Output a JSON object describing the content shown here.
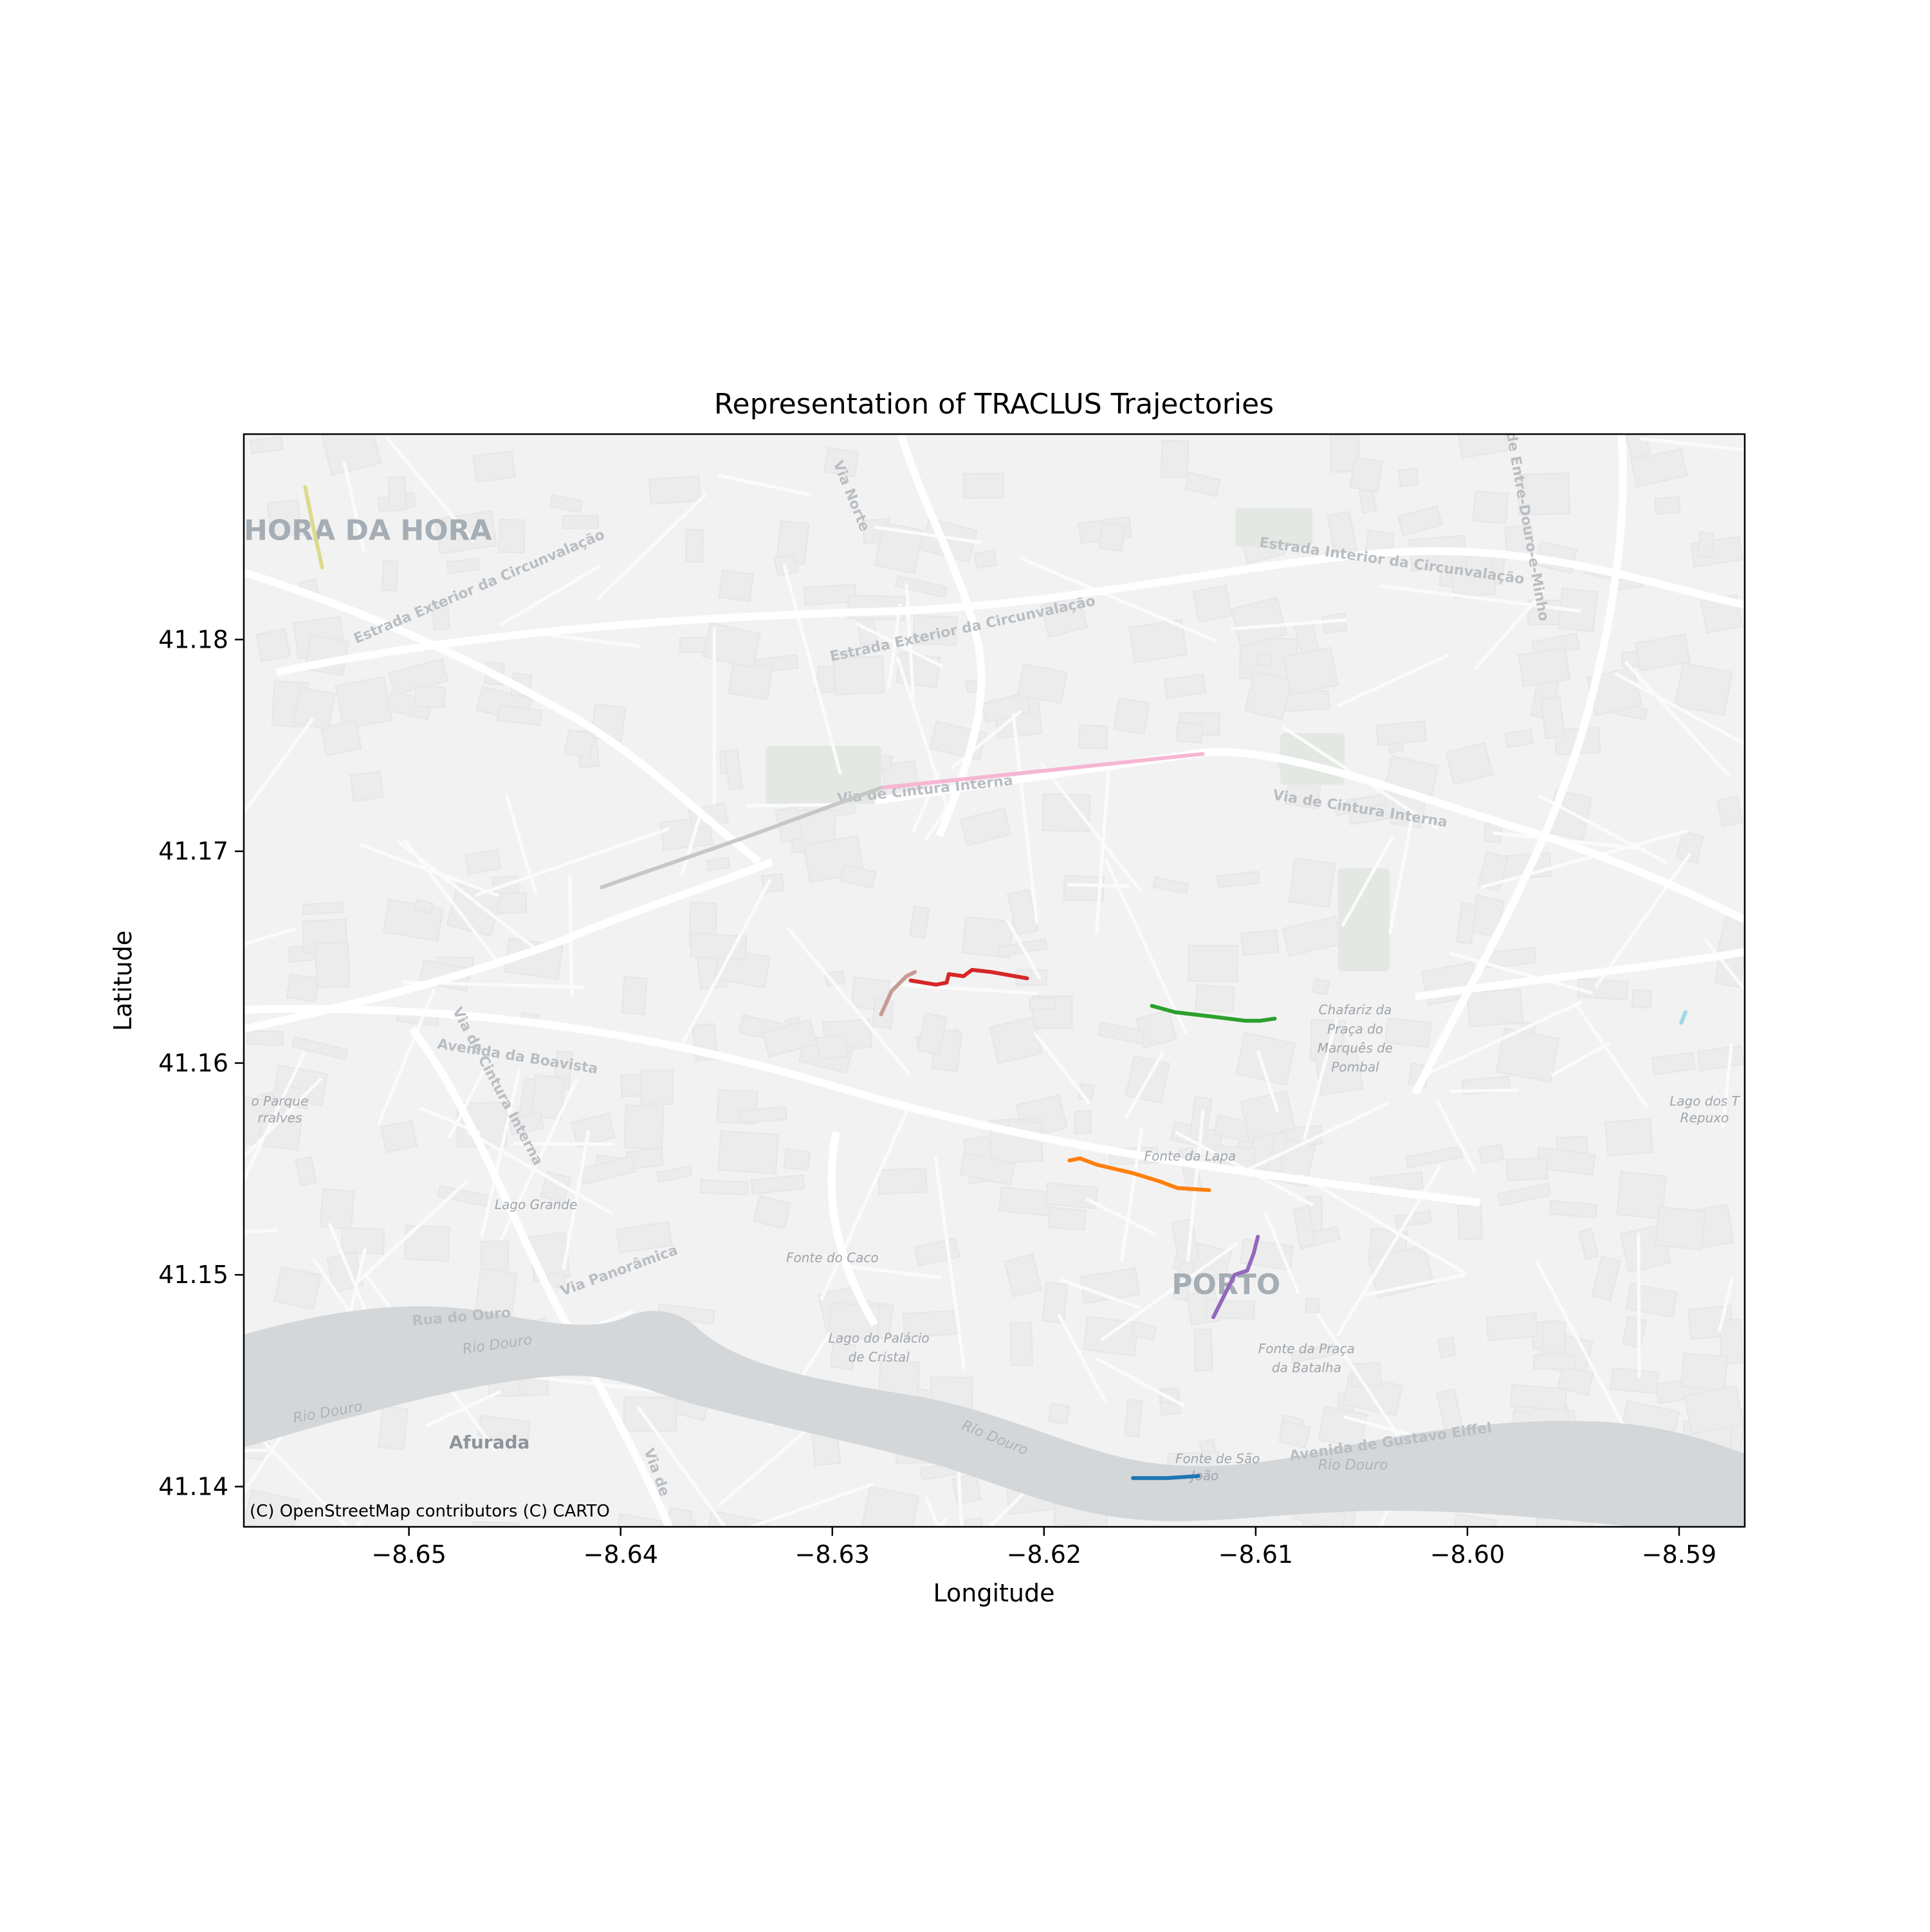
{
  "chart_data": {
    "type": "line",
    "title": "Representation of TRACLUS Trajectories",
    "xlabel": "Longitude",
    "ylabel": "Latitude",
    "xlim": [
      -8.6578,
      -8.5869
    ],
    "ylim": [
      41.1381,
      41.1897
    ],
    "xticks": [
      -8.65,
      -8.64,
      -8.63,
      -8.62,
      -8.61,
      -8.6,
      -8.59
    ],
    "xtick_labels": [
      "−8.65",
      "−8.64",
      "−8.63",
      "−8.62",
      "−8.61",
      "−8.60",
      "−8.59"
    ],
    "yticks": [
      41.14,
      41.15,
      41.16,
      41.17,
      41.18
    ],
    "ytick_labels": [
      "41.14",
      "41.15",
      "41.16",
      "41.17",
      "41.18"
    ],
    "grid": false,
    "legend": false,
    "attribution": "(C) OpenStreetMap contributors (C) CARTO",
    "series": [
      {
        "color": "#1f77b4",
        "points": [
          [
            -8.6158,
            41.1404
          ],
          [
            -8.6142,
            41.1404
          ],
          [
            -8.6127,
            41.1405
          ]
        ]
      },
      {
        "color": "#ff7f0e",
        "points": [
          [
            -8.6188,
            41.1554
          ],
          [
            -8.6183,
            41.1555
          ],
          [
            -8.6175,
            41.1552
          ],
          [
            -8.6158,
            41.1548
          ],
          [
            -8.6145,
            41.1544
          ],
          [
            -8.6137,
            41.1541
          ],
          [
            -8.6122,
            41.154
          ]
        ]
      },
      {
        "color": "#2ca02c",
        "points": [
          [
            -8.6149,
            41.1627
          ],
          [
            -8.6138,
            41.1624
          ],
          [
            -8.6121,
            41.1622
          ],
          [
            -8.6105,
            41.162
          ],
          [
            -8.6098,
            41.162
          ],
          [
            -8.6091,
            41.1621
          ]
        ]
      },
      {
        "color": "#d62728",
        "points": [
          [
            -8.6263,
            41.1639
          ],
          [
            -8.6251,
            41.1637
          ],
          [
            -8.6246,
            41.1638
          ],
          [
            -8.6245,
            41.1642
          ],
          [
            -8.6238,
            41.1641
          ],
          [
            -8.6234,
            41.1644
          ],
          [
            -8.6225,
            41.1643
          ],
          [
            -8.6208,
            41.164
          ]
        ]
      },
      {
        "color": "#9467bd",
        "points": [
          [
            -8.612,
            41.148
          ],
          [
            -8.6115,
            41.149
          ],
          [
            -8.611,
            41.15
          ],
          [
            -8.6104,
            41.1502
          ],
          [
            -8.6101,
            41.151
          ],
          [
            -8.6099,
            41.1518
          ]
        ]
      },
      {
        "color": "#c49c94",
        "points": [
          [
            -8.6277,
            41.1623
          ],
          [
            -8.6272,
            41.1634
          ],
          [
            -8.6265,
            41.1641
          ],
          [
            -8.6261,
            41.1643
          ]
        ]
      },
      {
        "color": "#f7b6d2",
        "points": [
          [
            -8.6277,
            41.173
          ],
          [
            -8.62,
            41.1738
          ],
          [
            -8.6125,
            41.1746
          ]
        ]
      },
      {
        "color": "#c7c7c7",
        "points": [
          [
            -8.6409,
            41.1683
          ],
          [
            -8.634,
            41.1707
          ],
          [
            -8.6277,
            41.173
          ]
        ]
      },
      {
        "color": "#dbdb8d",
        "points": [
          [
            -8.6549,
            41.1872
          ],
          [
            -8.6545,
            41.1852
          ],
          [
            -8.6541,
            41.1834
          ]
        ]
      },
      {
        "color": "#9edae5",
        "points": [
          [
            -8.5899,
            41.1619
          ],
          [
            -8.5897,
            41.1624
          ]
        ]
      }
    ],
    "map_labels": [
      {
        "text": "NHORA DA HORA",
        "lon": -8.6525,
        "lat": 41.1847,
        "size": "district"
      },
      {
        "text": "PORTO",
        "lon": -8.6114,
        "lat": 41.1491,
        "size": "district"
      },
      {
        "text": "Afurada",
        "lon": -8.6462,
        "lat": 41.1418,
        "size": "locality"
      },
      {
        "text": "Estrada Exterior da Circunvalação",
        "lon": -8.6466,
        "lat": 41.1823,
        "size": "road",
        "angle": -23
      },
      {
        "text": "Estrada Exterior da Circunvalação",
        "lon": -8.6238,
        "lat": 41.1803,
        "size": "road",
        "angle": -12
      },
      {
        "text": "Estrada Interior da Circunvalação",
        "lon": -8.6036,
        "lat": 41.1835,
        "size": "road",
        "angle": 8
      },
      {
        "text": "Via de Cintura Interna",
        "lon": -8.6256,
        "lat": 41.1727,
        "size": "road",
        "angle": -6
      },
      {
        "text": "Via de Cintura Interna",
        "lon": -8.6051,
        "lat": 41.1718,
        "size": "road",
        "angle": 9
      },
      {
        "text": "Via de Cintura Interna",
        "lon": -8.646,
        "lat": 41.1588,
        "size": "road",
        "angle": 62
      },
      {
        "text": "Via Norte",
        "lon": -8.6293,
        "lat": 41.1867,
        "size": "road",
        "angle": 68
      },
      {
        "text": "Via de Entre-Douro-e-Minho",
        "lon": -8.5975,
        "lat": 41.186,
        "size": "road",
        "angle": 80
      },
      {
        "text": "Avenida da Boavista",
        "lon": -8.6449,
        "lat": 41.1601,
        "size": "road",
        "angle": 9
      },
      {
        "text": "Via Panorâmica",
        "lon": -8.64,
        "lat": 41.15,
        "size": "road",
        "angle": -20
      },
      {
        "text": "Rua do Ouro",
        "lon": -8.6475,
        "lat": 41.1478,
        "size": "road",
        "angle": -5
      },
      {
        "text": "Rio Douro",
        "lon": -8.6458,
        "lat": 41.1465,
        "size": "water",
        "angle": -8
      },
      {
        "text": "Rio Douro",
        "lon": -8.6538,
        "lat": 41.1433,
        "size": "water",
        "angle": -10
      },
      {
        "text": "Rio Douro",
        "lon": -8.6224,
        "lat": 41.1421,
        "size": "water",
        "angle": 22
      },
      {
        "text": "Rio Douro",
        "lon": -8.6054,
        "lat": 41.1408,
        "size": "water",
        "angle": 0
      },
      {
        "text": "Avenida de Gustavo Eiffel",
        "lon": -8.6036,
        "lat": 41.1419,
        "size": "road",
        "angle": -8
      },
      {
        "text": "Via de",
        "lon": -8.6385,
        "lat": 41.1406,
        "size": "road",
        "angle": 70
      },
      {
        "text": "Chafariz da",
        "lon": -8.6053,
        "lat": 41.1623,
        "size": "poi"
      },
      {
        "text": "Praça do",
        "lon": -8.6053,
        "lat": 41.1614,
        "size": "poi"
      },
      {
        "text": "Marquês de",
        "lon": -8.6053,
        "lat": 41.1605,
        "size": "poi"
      },
      {
        "text": "Pombal",
        "lon": -8.6053,
        "lat": 41.1596,
        "size": "poi"
      },
      {
        "text": "Fonte da Lapa",
        "lon": -8.6131,
        "lat": 41.1554,
        "size": "poi"
      },
      {
        "text": "Lago Grande",
        "lon": -8.644,
        "lat": 41.1531,
        "size": "poi"
      },
      {
        "text": "Fonte do Caco",
        "lon": -8.63,
        "lat": 41.1506,
        "size": "poi"
      },
      {
        "text": "Lago do Palácio",
        "lon": -8.6278,
        "lat": 41.1468,
        "size": "poi"
      },
      {
        "text": "de Cristal",
        "lon": -8.6278,
        "lat": 41.1459,
        "size": "poi"
      },
      {
        "text": "Fonte da Praça",
        "lon": -8.6076,
        "lat": 41.1463,
        "size": "poi"
      },
      {
        "text": "da Batalha",
        "lon": -8.6076,
        "lat": 41.1454,
        "size": "poi"
      },
      {
        "text": "Fonte de São",
        "lon": -8.6118,
        "lat": 41.1411,
        "size": "poi"
      },
      {
        "text": "João",
        "lon": -8.6124,
        "lat": 41.1403,
        "size": "poi"
      },
      {
        "text": "Lago dos T",
        "lon": -8.5888,
        "lat": 41.158,
        "size": "poi"
      },
      {
        "text": "Repuxo",
        "lon": -8.5888,
        "lat": 41.1572,
        "size": "poi"
      },
      {
        "text": "o Parque",
        "lon": -8.6561,
        "lat": 41.158,
        "size": "poi"
      },
      {
        "text": "rralves",
        "lon": -8.6561,
        "lat": 41.1572,
        "size": "poi"
      }
    ]
  }
}
